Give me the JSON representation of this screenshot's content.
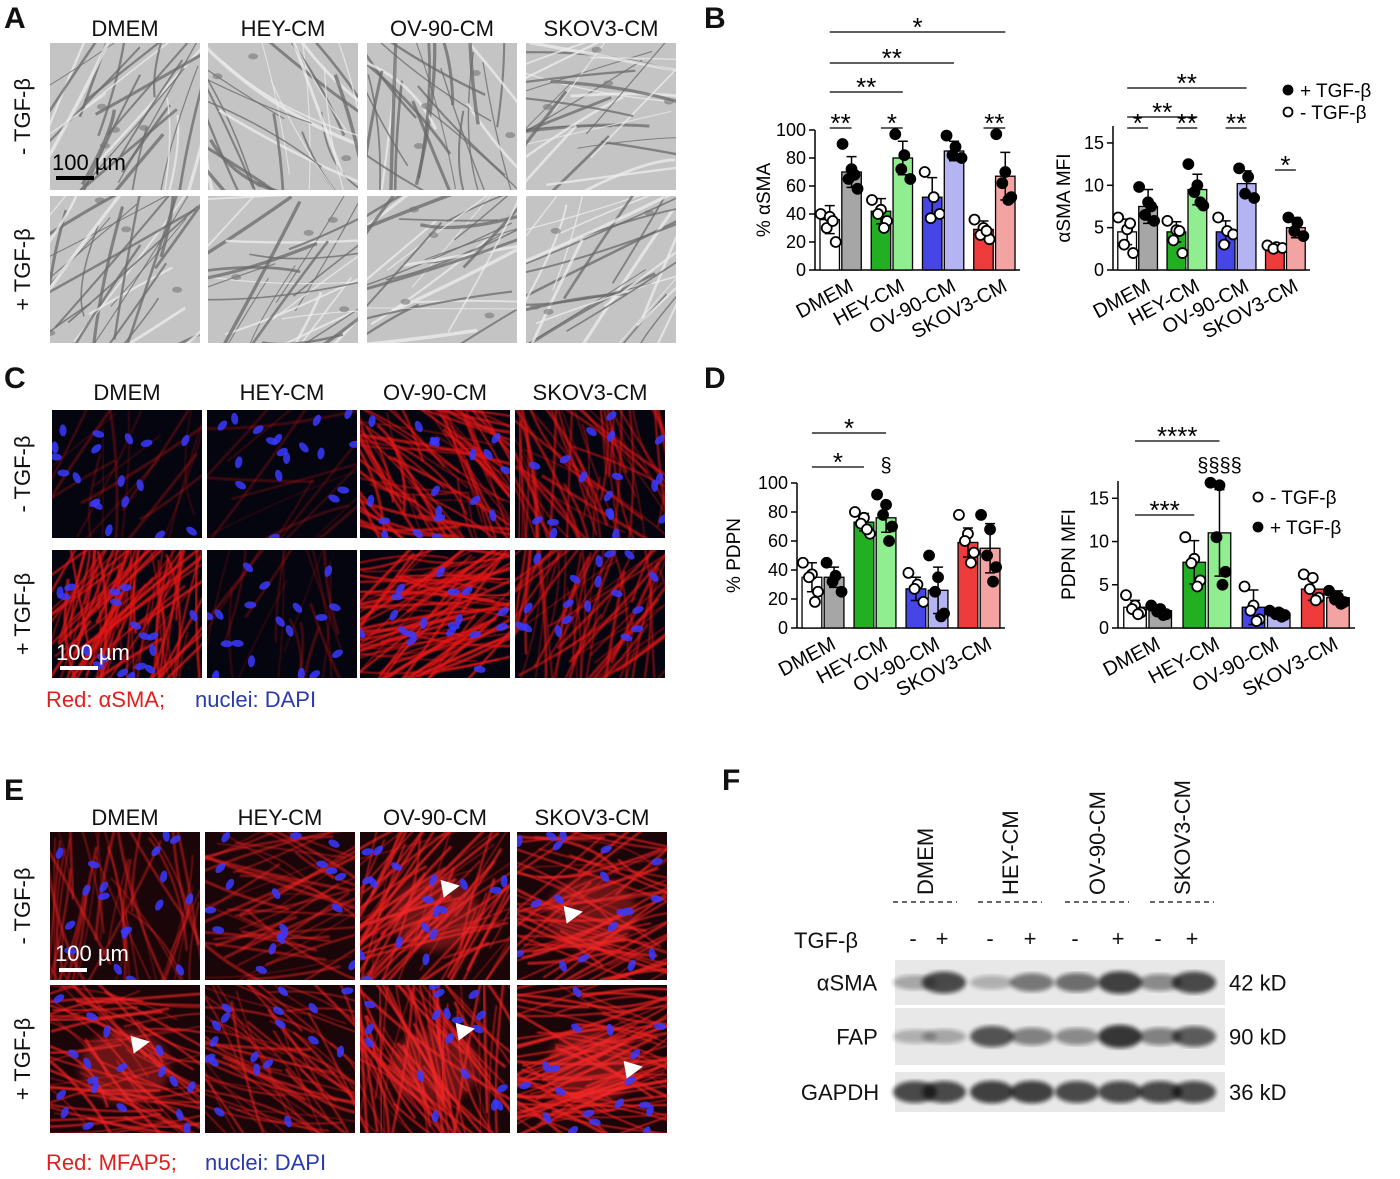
{
  "panels": {
    "A": {
      "label": "A",
      "columns": [
        "DMEM",
        "HEY-CM",
        "OV-90-CM",
        "SKOV3-CM"
      ],
      "rows": [
        "- TGF-β",
        "+ TGF-β"
      ],
      "scale": "100 µm"
    },
    "B": {
      "label": "B"
    },
    "C": {
      "label": "C",
      "columns": [
        "DMEM",
        "HEY-CM",
        "OV-90-CM",
        "SKOV3-CM"
      ],
      "rows": [
        "- TGF-β",
        "+ TGF-β"
      ],
      "scale": "100 µm",
      "caption": [
        "Red: αSMA;",
        "nuclei: DAPI"
      ]
    },
    "D": {
      "label": "D"
    },
    "E": {
      "label": "E",
      "columns": [
        "DMEM",
        "HEY-CM",
        "OV-90-CM",
        "SKOV3-CM"
      ],
      "rows": [
        "- TGF-β",
        "+ TGF-β"
      ],
      "scale": "100 µm",
      "caption": [
        "Red: MFAP5;",
        "nuclei: DAPI"
      ]
    },
    "F": {
      "label": "F",
      "lanes": [
        "DMEM",
        "HEY-CM",
        "OV-90-CM",
        "SKOV3-CM"
      ],
      "treatment": "TGF-β",
      "signs": [
        "-",
        "+",
        "-",
        "+",
        "-",
        "+",
        "-",
        "+"
      ],
      "proteins": [
        "αSMA",
        "FAP",
        "GAPDH"
      ],
      "sizes": [
        "42 kD",
        "90 kD",
        "36 kD"
      ]
    }
  },
  "chart_data": [
    {
      "type": "bar",
      "ylabel": "% αSMA",
      "categories": [
        "DMEM",
        "HEY-CM",
        "OV-90-CM",
        "SKOV3-CM"
      ],
      "ylim": [
        0,
        100
      ],
      "yticks": [
        0,
        20,
        40,
        60,
        80,
        100
      ],
      "series": [
        {
          "marker": "hollow",
          "colors": [
            "#ffffff",
            "#22b022",
            "#4646e6",
            "#ee3b3b"
          ],
          "values": [
            36,
            42,
            52,
            29
          ],
          "errors": [
            10,
            9,
            14,
            6
          ],
          "points": [
            [
              40,
              38,
              30,
              20,
              35
            ],
            [
              50,
              43,
              40,
              35,
              30
            ],
            [
              70,
              52,
              37,
              40
            ],
            [
              36,
              30,
              25,
              22,
              28
            ]
          ]
        },
        {
          "marker": "filled",
          "colors": [
            "#a6a6a6",
            "#90ee90",
            "#b4b4f2",
            "#f4a3a3"
          ],
          "values": [
            70,
            80,
            85,
            67
          ],
          "errors": [
            11,
            12,
            7,
            17
          ],
          "points": [
            [
              90,
              72,
              65,
              58,
              68
            ],
            [
              97,
              82,
              72,
              65
            ],
            [
              96,
              88,
              82,
              80
            ],
            [
              97,
              70,
              62,
              52,
              50
            ]
          ]
        }
      ],
      "annotations": [
        "**",
        "*",
        "**",
        "**",
        "**",
        "*"
      ]
    },
    {
      "type": "bar",
      "ylabel": "αSMA MFI",
      "categories": [
        "DMEM",
        "HEY-CM",
        "OV-90-CM",
        "SKOV3-CM"
      ],
      "ylim": [
        0,
        17
      ],
      "yticks": [
        0,
        5,
        10,
        15
      ],
      "series": [
        {
          "name": "- TGF-β",
          "marker": "hollow",
          "colors": [
            "#ffffff",
            "#22b022",
            "#4646e6",
            "#ee3b3b"
          ],
          "values": [
            4.5,
            4.5,
            4.5,
            2.7
          ],
          "errors": [
            1.5,
            1.2,
            1.3,
            0.3
          ],
          "points": [
            [
              6.2,
              4.8,
              3.0,
              2.0,
              5.5
            ],
            [
              5.8,
              4.7,
              3.5,
              2.0,
              4.6
            ],
            [
              6.2,
              4.6,
              3.0,
              4.2
            ],
            [
              2.9,
              2.7,
              2.5,
              2.6
            ]
          ]
        },
        {
          "name": "+ TGF-β",
          "marker": "filled",
          "colors": [
            "#a6a6a6",
            "#90ee90",
            "#b4b4f2",
            "#f4a3a3"
          ],
          "values": [
            7.5,
            9.5,
            10.2,
            5
          ],
          "errors": [
            2,
            1.8,
            1.5,
            1.2
          ],
          "points": [
            [
              9.8,
              8.0,
              6.5,
              5.8,
              7.5
            ],
            [
              12.5,
              10.0,
              9.2,
              7.6,
              8.0
            ],
            [
              12.0,
              11.0,
              9.0,
              8.5
            ],
            [
              6.2,
              5.6,
              4.6,
              4.0
            ]
          ]
        }
      ],
      "annotations": [
        "*",
        "**",
        "**",
        "*",
        "**",
        "**"
      ]
    },
    {
      "type": "bar",
      "ylabel": "% PDPN",
      "categories": [
        "DMEM",
        "HEY-CM",
        "OV-90-CM",
        "SKOV3-CM"
      ],
      "ylim": [
        0,
        100
      ],
      "yticks": [
        0,
        20,
        40,
        60,
        80,
        100
      ],
      "series": [
        {
          "marker": "hollow",
          "colors": [
            "#ffffff",
            "#22b022",
            "#4646e6",
            "#ee3b3b"
          ],
          "values": [
            35,
            73,
            27,
            59
          ],
          "errors": [
            10,
            6,
            8,
            10
          ],
          "points": [
            [
              45,
              37,
              35,
              25,
              18
            ],
            [
              80,
              76,
              72,
              65,
              68
            ],
            [
              38,
              30,
              27,
              18
            ],
            [
              78,
              65,
              60,
              52,
              45
            ]
          ]
        },
        {
          "marker": "filled",
          "colors": [
            "#a6a6a6",
            "#90ee90",
            "#b4b4f2",
            "#f4a3a3"
          ],
          "values": [
            35,
            76,
            26,
            55
          ],
          "errors": [
            7,
            10,
            16,
            17
          ],
          "points": [
            [
              45,
              36,
              32,
              25
            ],
            [
              92,
              85,
              78,
              70,
              60
            ],
            [
              50,
              35,
              25,
              10,
              8
            ],
            [
              78,
              68,
              50,
              42,
              32
            ]
          ]
        }
      ],
      "annotations": [
        "*",
        "*",
        "§"
      ]
    },
    {
      "type": "bar",
      "ylabel": "PDPN MFI",
      "categories": [
        "DMEM",
        "HEY-CM",
        "OV-90-CM",
        "SKOV3-CM"
      ],
      "ylim": [
        0,
        17
      ],
      "yticks": [
        0,
        5,
        10,
        15
      ],
      "series": [
        {
          "name": "- TGF-β",
          "marker": "hollow",
          "colors": [
            "#ffffff",
            "#22b022",
            "#4646e6",
            "#ee3b3b"
          ],
          "values": [
            2.4,
            7.6,
            2.4,
            4.5
          ],
          "errors": [
            0.8,
            2.5,
            2,
            1.3
          ],
          "points": [
            [
              3.8,
              2.6,
              2.2,
              1.8,
              1.6
            ],
            [
              10.5,
              8.0,
              7.5,
              5.5,
              4.8
            ],
            [
              4.8,
              2.6,
              2.0,
              1.0,
              0.8
            ],
            [
              6.2,
              5.8,
              4.5,
              3.5,
              3.2
            ]
          ]
        },
        {
          "name": "+ TGF-β",
          "marker": "filled",
          "colors": [
            "#a6a6a6",
            "#90ee90",
            "#b4b4f2",
            "#f4a3a3"
          ],
          "values": [
            2.0,
            11,
            1.7,
            3.5
          ],
          "errors": [
            0.5,
            5,
            0.5,
            0.8
          ],
          "points": [
            [
              2.6,
              2.2,
              1.9,
              1.6,
              1.5
            ],
            [
              16.8,
              16.5,
              10.5,
              6.5,
              5.0
            ],
            [
              2.0,
              1.8,
              1.6,
              1.5,
              1.3
            ],
            [
              4.3,
              3.6,
              3.3,
              3.0,
              2.8
            ]
          ]
        }
      ],
      "annotations": [
        "***",
        "****",
        "§§§§"
      ]
    }
  ]
}
